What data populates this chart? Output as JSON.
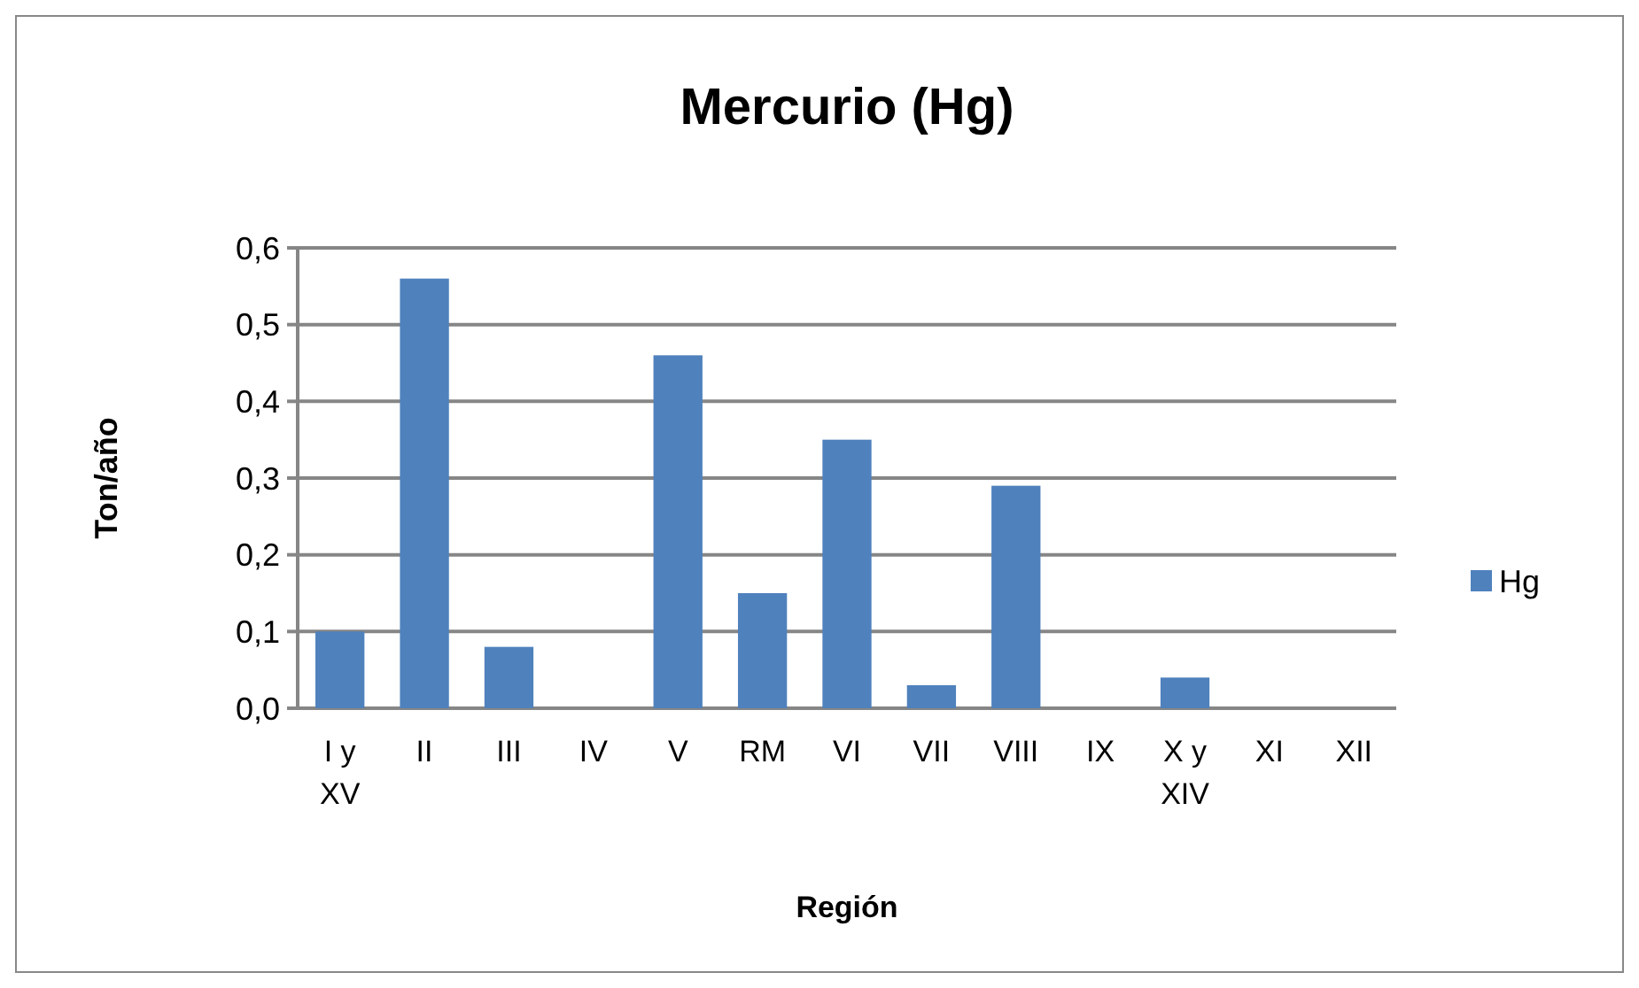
{
  "chart_data": {
    "type": "bar",
    "title": "Mercurio (Hg)",
    "xlabel": "Región",
    "ylabel": "Ton/año",
    "categories": [
      "I y XV",
      "II",
      "III",
      "IV",
      "V",
      "RM",
      "VI",
      "VII",
      "VIII",
      "IX",
      "X y XIV",
      "XI",
      "XII"
    ],
    "series": [
      {
        "name": "Hg",
        "color": "#4f81bd",
        "values": [
          0.1,
          0.56,
          0.08,
          0,
          0.46,
          0.15,
          0.35,
          0.03,
          0.29,
          0,
          0.04,
          0,
          0
        ]
      }
    ],
    "ylim": [
      0,
      0.6
    ],
    "yticks": [
      {
        "value": 0,
        "label": "0,0"
      },
      {
        "value": 0.1,
        "label": "0,1"
      },
      {
        "value": 0.2,
        "label": "0,2"
      },
      {
        "value": 0.3,
        "label": "0,3"
      },
      {
        "value": 0.4,
        "label": "0,4"
      },
      {
        "value": 0.5,
        "label": "0,5"
      },
      {
        "value": 0.6,
        "label": "0,6"
      }
    ],
    "grid": "y",
    "legend": "right"
  }
}
